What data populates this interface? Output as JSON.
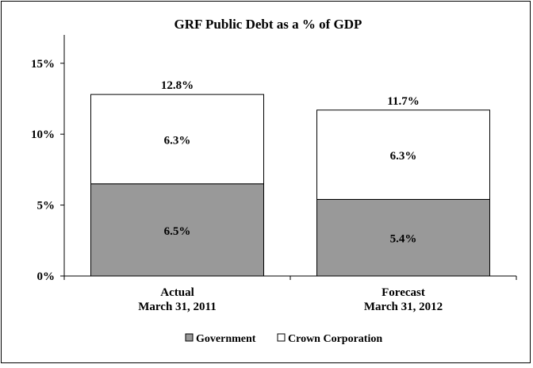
{
  "chart_data": {
    "type": "bar",
    "stacked": true,
    "title": "GRF Public Debt as a % of GDP",
    "categories": [
      [
        "Actual",
        "March 31, 2011"
      ],
      [
        "Forecast",
        "March 31, 2012"
      ]
    ],
    "series": [
      {
        "name": "Government",
        "values": [
          6.5,
          5.4
        ],
        "labels": [
          "6.5%",
          "5.4%"
        ],
        "color": "#999999"
      },
      {
        "name": "Crown Corporation",
        "values": [
          6.3,
          6.3
        ],
        "labels": [
          "6.3%",
          "6.3%"
        ],
        "color": "#ffffff"
      }
    ],
    "totals": [
      12.8,
      11.7
    ],
    "total_labels": [
      "12.8%",
      "11.7%"
    ],
    "yticks": [
      0,
      5,
      10,
      15
    ],
    "ytick_labels": [
      "0%",
      "5%",
      "10%",
      "15%"
    ],
    "ylim": [
      0,
      17
    ],
    "legend_position": "bottom",
    "grid": false
  }
}
